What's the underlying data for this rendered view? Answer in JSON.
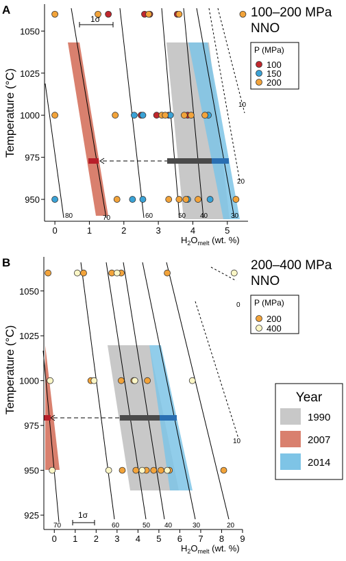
{
  "colors": {
    "y1990": "#c8c8c8",
    "y2007": "#d9806e",
    "y2014": "#7ec4e6",
    "p100": "#c0272d",
    "p150": "#3aa2d6",
    "p200": "#f2a33a",
    "p400": "#fbf6c6",
    "arrow_red": "#b8202a",
    "bar_dark": "#4a4a4a",
    "bar_blue": "#2a6fb2"
  },
  "year_legend": {
    "title": "Year",
    "items": [
      {
        "label": "1990",
        "color": "#c8c8c8"
      },
      {
        "label": "2007",
        "color": "#d9806e"
      },
      {
        "label": "2014",
        "color": "#7ec4e6"
      }
    ]
  },
  "chart_data": [
    {
      "panel_letter": "A",
      "type": "scatter",
      "title": "100–200 MPa",
      "subtitle": "NNO",
      "ylabel": "Temperature (°C)",
      "xlabel_main": "H",
      "xlabel_sub1": "2",
      "xlabel_mid": "O",
      "xlabel_sub2": "melt",
      "xlabel_unit": " (wt. %)",
      "xlim": [
        -0.3,
        5.6
      ],
      "ylim": [
        937,
        1066
      ],
      "x_ticks": [
        0,
        1,
        2,
        3,
        4,
        5
      ],
      "y_ticks": [
        950,
        975,
        1000,
        1025,
        1050
      ],
      "sigma_label": "1σ",
      "legend": {
        "title": "P (MPa)",
        "items": [
          {
            "label": "100",
            "color": "#c0272d"
          },
          {
            "label": "150",
            "color": "#3aa2d6"
          },
          {
            "label": "200",
            "color": "#f2a33a"
          }
        ]
      },
      "isolines": [
        {
          "label": "80",
          "style": "solid"
        },
        {
          "label": "70",
          "style": "solid"
        },
        {
          "label": "60",
          "style": "solid"
        },
        {
          "label": "50",
          "style": "solid"
        },
        {
          "label": "40",
          "style": "solid"
        },
        {
          "label": "30",
          "style": "solid"
        },
        {
          "label": "20",
          "style": "dashed"
        },
        {
          "label": "10",
          "style": "dashed"
        }
      ],
      "series": [
        {
          "name": "100",
          "points": [
            [
              1.55,
              1060
            ],
            [
              2.6,
              1060
            ],
            [
              2.75,
              1060
            ],
            [
              3.55,
              1060
            ],
            [
              2.95,
              1000
            ],
            [
              2.5,
              1000
            ],
            [
              3.3,
              1000
            ],
            [
              3.85,
              1000
            ]
          ]
        },
        {
          "name": "150",
          "points": [
            [
              2.3,
              1000
            ],
            [
              2.55,
              1000
            ],
            [
              3.35,
              1000
            ],
            [
              4.45,
              1000
            ],
            [
              0.0,
              950
            ],
            [
              2.25,
              950
            ],
            [
              2.55,
              950
            ],
            [
              3.85,
              950
            ],
            [
              4.5,
              950
            ]
          ]
        },
        {
          "name": "200",
          "points": [
            [
              0.0,
              1060
            ],
            [
              1.25,
              1060
            ],
            [
              2.72,
              1060
            ],
            [
              3.6,
              1060
            ],
            [
              5.45,
              1060
            ],
            [
              0.0,
              1000
            ],
            [
              1.75,
              1000
            ],
            [
              3.1,
              1000
            ],
            [
              3.2,
              1000
            ],
            [
              3.75,
              1000
            ],
            [
              3.95,
              1000
            ],
            [
              4.35,
              1000
            ],
            [
              1.8,
              950
            ],
            [
              3.3,
              950
            ],
            [
              3.6,
              950
            ],
            [
              3.8,
              950
            ],
            [
              4.15,
              950
            ],
            [
              5.25,
              950
            ]
          ]
        }
      ]
    },
    {
      "panel_letter": "B",
      "type": "scatter",
      "title": "200–400 MPa",
      "subtitle": "NNO",
      "ylabel": "Temperature (°C)",
      "xlabel_main": "H",
      "xlabel_sub1": "2",
      "xlabel_mid": "O",
      "xlabel_sub2": "melt",
      "xlabel_unit": " (wt. %)",
      "xlim": [
        -0.5,
        9.0
      ],
      "ylim": [
        917,
        1069
      ],
      "x_ticks": [
        0,
        1,
        2,
        3,
        4,
        5,
        6,
        7,
        8,
        9
      ],
      "y_ticks": [
        925,
        950,
        975,
        1000,
        1025,
        1050
      ],
      "sigma_label": "1σ",
      "legend": {
        "title": "P (MPa)",
        "items": [
          {
            "label": "200",
            "color": "#f2a33a"
          },
          {
            "label": "400",
            "color": "#fbf6c6"
          }
        ]
      },
      "isolines": [
        {
          "label": "70",
          "style": "solid"
        },
        {
          "label": "60",
          "style": "solid"
        },
        {
          "label": "50",
          "style": "solid"
        },
        {
          "label": "40",
          "style": "solid"
        },
        {
          "label": "30",
          "style": "solid"
        },
        {
          "label": "20",
          "style": "solid"
        },
        {
          "label": "10",
          "style": "dashed"
        },
        {
          "label": "0",
          "style": "dashed"
        }
      ],
      "series": [
        {
          "name": "200",
          "points": [
            [
              -0.3,
              1060
            ],
            [
              1.4,
              1060
            ],
            [
              2.75,
              1060
            ],
            [
              3.2,
              1060
            ],
            [
              5.4,
              1060
            ],
            [
              1.75,
              1000
            ],
            [
              3.2,
              1000
            ],
            [
              3.8,
              1000
            ],
            [
              4.45,
              1000
            ],
            [
              3.25,
              950
            ],
            [
              3.9,
              950
            ],
            [
              4.4,
              950
            ],
            [
              4.75,
              950
            ],
            [
              5.1,
              950
            ],
            [
              5.5,
              950
            ],
            [
              8.1,
              950
            ]
          ]
        },
        {
          "name": "400",
          "points": [
            [
              1.1,
              1060
            ],
            [
              3.0,
              1060
            ],
            [
              8.6,
              1060
            ],
            [
              -0.2,
              1000
            ],
            [
              1.9,
              1000
            ],
            [
              3.85,
              1000
            ],
            [
              6.6,
              1000
            ],
            [
              -0.1,
              950
            ],
            [
              2.6,
              950
            ],
            [
              4.2,
              950
            ],
            [
              5.4,
              950
            ]
          ]
        }
      ]
    }
  ]
}
